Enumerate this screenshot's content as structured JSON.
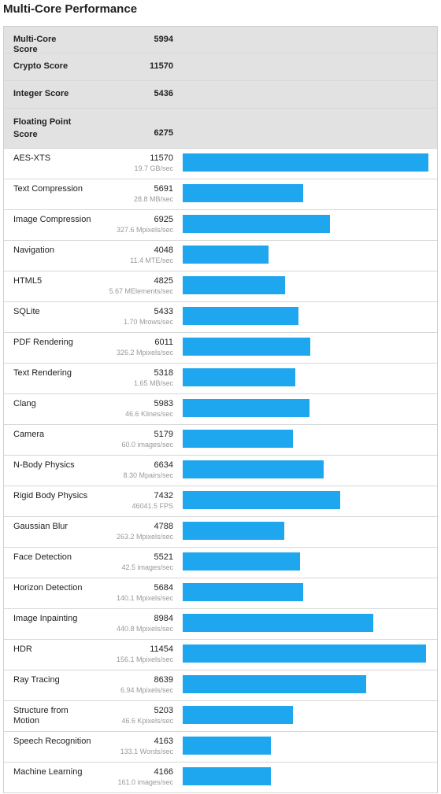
{
  "title": "Multi-Core Performance",
  "summary": [
    {
      "name": "Multi-Core Score",
      "score": 5994
    },
    {
      "name": "Crypto Score",
      "score": 11570
    },
    {
      "name": "Integer Score",
      "score": 5436
    },
    {
      "name": "Floating Point Score",
      "score": 6275
    }
  ],
  "tests": [
    {
      "name": "AES-XTS",
      "score": 11570,
      "rate": "19.7 GB/sec"
    },
    {
      "name": "Text Compression",
      "score": 5691,
      "rate": "28.8 MB/sec"
    },
    {
      "name": "Image Compression",
      "score": 6925,
      "rate": "327.6 Mpixels/sec"
    },
    {
      "name": "Navigation",
      "score": 4048,
      "rate": "11.4 MTE/sec"
    },
    {
      "name": "HTML5",
      "score": 4825,
      "rate": "5.67 MElements/sec"
    },
    {
      "name": "SQLite",
      "score": 5433,
      "rate": "1.70 Mrows/sec"
    },
    {
      "name": "PDF Rendering",
      "score": 6011,
      "rate": "326.2 Mpixels/sec"
    },
    {
      "name": "Text Rendering",
      "score": 5318,
      "rate": "1.65 MB/sec"
    },
    {
      "name": "Clang",
      "score": 5983,
      "rate": "46.6 Klines/sec"
    },
    {
      "name": "Camera",
      "score": 5179,
      "rate": "60.0 images/sec"
    },
    {
      "name": "N-Body Physics",
      "score": 6634,
      "rate": "8.30 Mpairs/sec"
    },
    {
      "name": "Rigid Body Physics",
      "score": 7432,
      "rate": "46041.5 FPS"
    },
    {
      "name": "Gaussian Blur",
      "score": 4788,
      "rate": "263.2 Mpixels/sec"
    },
    {
      "name": "Face Detection",
      "score": 5521,
      "rate": "42.5 images/sec"
    },
    {
      "name": "Horizon Detection",
      "score": 5684,
      "rate": "140.1 Mpixels/sec"
    },
    {
      "name": "Image Inpainting",
      "score": 8984,
      "rate": "440.8 Mpixels/sec"
    },
    {
      "name": "HDR",
      "score": 11454,
      "rate": "156.1 Mpixels/sec"
    },
    {
      "name": "Ray Tracing",
      "score": 8639,
      "rate": "6.94 Mpixels/sec"
    },
    {
      "name": "Structure from Motion",
      "score": 5203,
      "rate": "46.6 Kpixels/sec"
    },
    {
      "name": "Speech Recognition",
      "score": 4163,
      "rate": "133.1 Words/sec"
    },
    {
      "name": "Machine Learning",
      "score": 4166,
      "rate": "161.0 images/sec"
    }
  ]
}
